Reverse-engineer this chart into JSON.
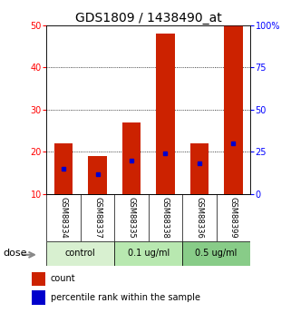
{
  "title": "GDS1809 / 1438490_at",
  "samples": [
    "GSM88334",
    "GSM88337",
    "GSM88335",
    "GSM88338",
    "GSM88336",
    "GSM88399"
  ],
  "counts": [
    22,
    19,
    27,
    48,
    22,
    50
  ],
  "percentiles": [
    15,
    12,
    20,
    24,
    18,
    30
  ],
  "groups": [
    {
      "label": "control",
      "indices": [
        0,
        1
      ],
      "color": "#ccebc5"
    },
    {
      "label": "0.1 ug/ml",
      "indices": [
        2,
        3
      ],
      "color": "#a8ddb5"
    },
    {
      "label": "0.5 ug/ml",
      "indices": [
        4,
        5
      ],
      "color": "#7bccc4"
    }
  ],
  "ylim_left": [
    10,
    50
  ],
  "ylim_right": [
    0,
    100
  ],
  "yticks_left": [
    10,
    20,
    30,
    40,
    50
  ],
  "yticks_right": [
    0,
    25,
    50,
    75,
    100
  ],
  "bar_color": "#cc2200",
  "percentile_color": "#0000cc",
  "bar_width": 0.55,
  "background_color": "#ffffff",
  "plot_bg_color": "#ffffff",
  "label_area_color": "#c8c8c8",
  "group_colors": [
    "#d8f0d0",
    "#b8e8b0",
    "#88cc88"
  ],
  "title_fontsize": 10,
  "tick_fontsize": 7,
  "sample_fontsize": 6,
  "group_fontsize": 7,
  "legend_fontsize": 7,
  "dose_fontsize": 8
}
